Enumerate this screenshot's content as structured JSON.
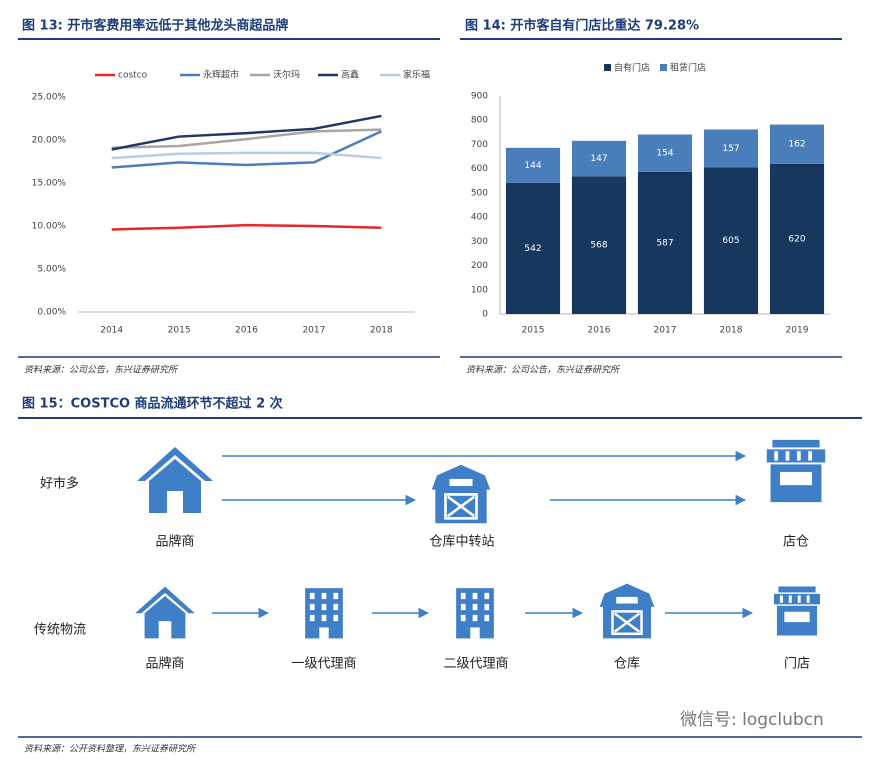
{
  "chart_data": [
    {
      "type": "line",
      "title": "图 13: 开市客费用率远低于其他龙头商超品牌",
      "categories": [
        "2014",
        "2015",
        "2016",
        "2017",
        "2018"
      ],
      "series": [
        {
          "name": "costco",
          "color": "#e8262a",
          "values": [
            9.6,
            9.8,
            10.1,
            10.0,
            9.8
          ]
        },
        {
          "name": "永辉超市",
          "color": "#4a7ebb",
          "values": [
            16.8,
            17.4,
            17.1,
            17.4,
            21.0
          ]
        },
        {
          "name": "沃尔玛",
          "color": "#a6a6a6",
          "values": [
            19.1,
            19.3,
            20.1,
            21.0,
            21.2
          ]
        },
        {
          "name": "高鑫",
          "color": "#1f3864",
          "values": [
            18.9,
            20.4,
            20.8,
            21.3,
            22.8
          ]
        },
        {
          "name": "家乐福",
          "color": "#b9cde5",
          "values": [
            17.9,
            18.4,
            18.5,
            18.5,
            17.9
          ]
        }
      ],
      "ylim": [
        0,
        25
      ],
      "yticks": [
        {
          "value": 0,
          "label": "0.00%"
        },
        {
          "value": 5,
          "label": "5.00%"
        },
        {
          "value": 10,
          "label": "10.00%"
        },
        {
          "value": 15,
          "label": "15.00%"
        },
        {
          "value": 20,
          "label": "20.00%"
        },
        {
          "value": 25,
          "label": "25.00%"
        }
      ],
      "source": "资料来源：公司公告，东兴证券研究所"
    },
    {
      "type": "bar",
      "stacked": true,
      "title": "图 14: 开市客自有门店比重达 79.28%",
      "categories": [
        "2015",
        "2016",
        "2017",
        "2018",
        "2019"
      ],
      "series": [
        {
          "name": "自有门店",
          "color": "#17375e",
          "values": [
            542,
            568,
            587,
            605,
            620
          ]
        },
        {
          "name": "租赁门店",
          "color": "#4a7ebb",
          "values": [
            144,
            147,
            154,
            157,
            162
          ]
        }
      ],
      "ylim": [
        0,
        900
      ],
      "yticks": [
        0,
        100,
        200,
        300,
        400,
        500,
        600,
        700,
        800,
        900
      ],
      "source": "资料来源：公司公告，东兴证券研究所"
    }
  ],
  "figure15": {
    "title": "图 15：COSTCO 商品流通环节不超过 2 次",
    "rows": [
      {
        "label": "好市多",
        "nodes": [
          "品牌商",
          "仓库中转站",
          "店仓"
        ]
      },
      {
        "label": "传统物流",
        "nodes": [
          "品牌商",
          "一级代理商",
          "二级代理商",
          "仓库",
          "门店"
        ]
      }
    ],
    "source": "资料来源：公开资料整理，东兴证券研究所"
  },
  "watermark": "微信号: logclubcn"
}
